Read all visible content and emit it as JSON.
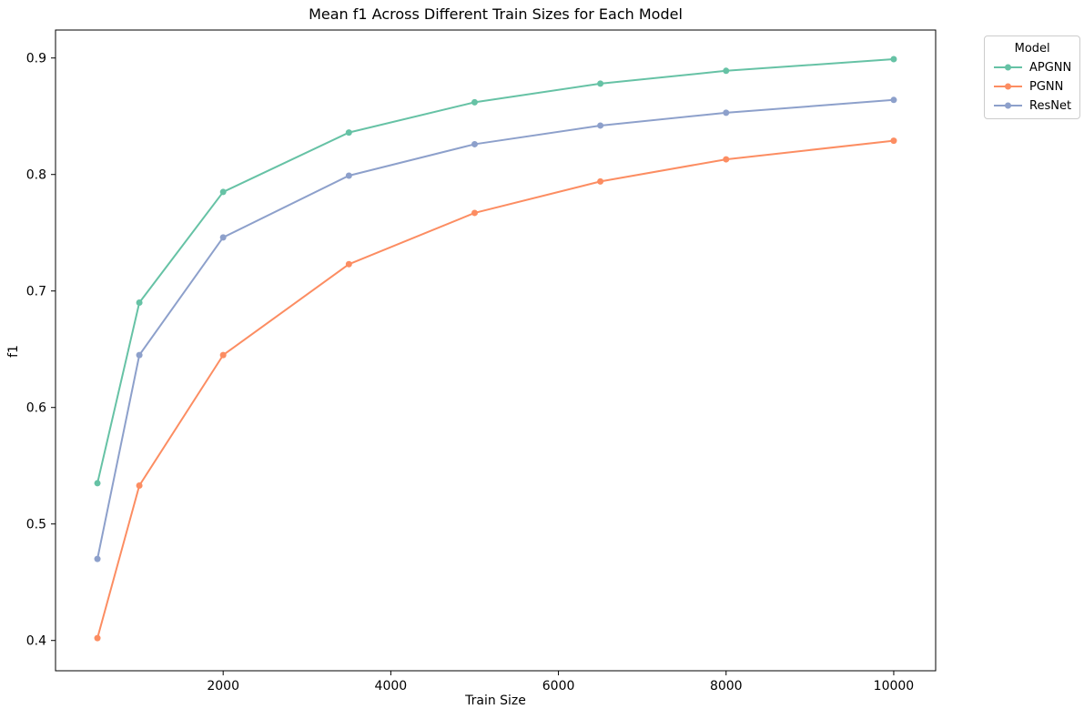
{
  "chart_data": {
    "type": "line",
    "title": "Mean f1 Across Different Train Sizes for Each Model",
    "xlabel": "Train Size",
    "ylabel": "f1",
    "legend_title": "Model",
    "legend_position": "outside-top-right",
    "grid": false,
    "marker": "circle",
    "x": [
      500,
      1000,
      2000,
      3500,
      5000,
      6500,
      8000,
      10000
    ],
    "series": [
      {
        "name": "APGNN",
        "color": "#66c2a5",
        "values": [
          0.535,
          0.69,
          0.785,
          0.836,
          0.862,
          0.878,
          0.889,
          0.899
        ]
      },
      {
        "name": "PGNN",
        "color": "#fc8d62",
        "values": [
          0.402,
          0.533,
          0.645,
          0.723,
          0.767,
          0.794,
          0.813,
          0.829
        ]
      },
      {
        "name": "ResNet",
        "color": "#8da0cb",
        "values": [
          0.47,
          0.645,
          0.746,
          0.799,
          0.826,
          0.842,
          0.853,
          0.864
        ]
      }
    ],
    "xlim": [
      0,
      10500
    ],
    "ylim": [
      0.374,
      0.924
    ],
    "x_ticks": [
      2000,
      4000,
      6000,
      8000,
      10000
    ],
    "y_ticks": [
      0.4,
      0.5,
      0.6,
      0.7,
      0.8,
      0.9
    ],
    "axis_color": "#000000",
    "text_color": "#000000"
  }
}
